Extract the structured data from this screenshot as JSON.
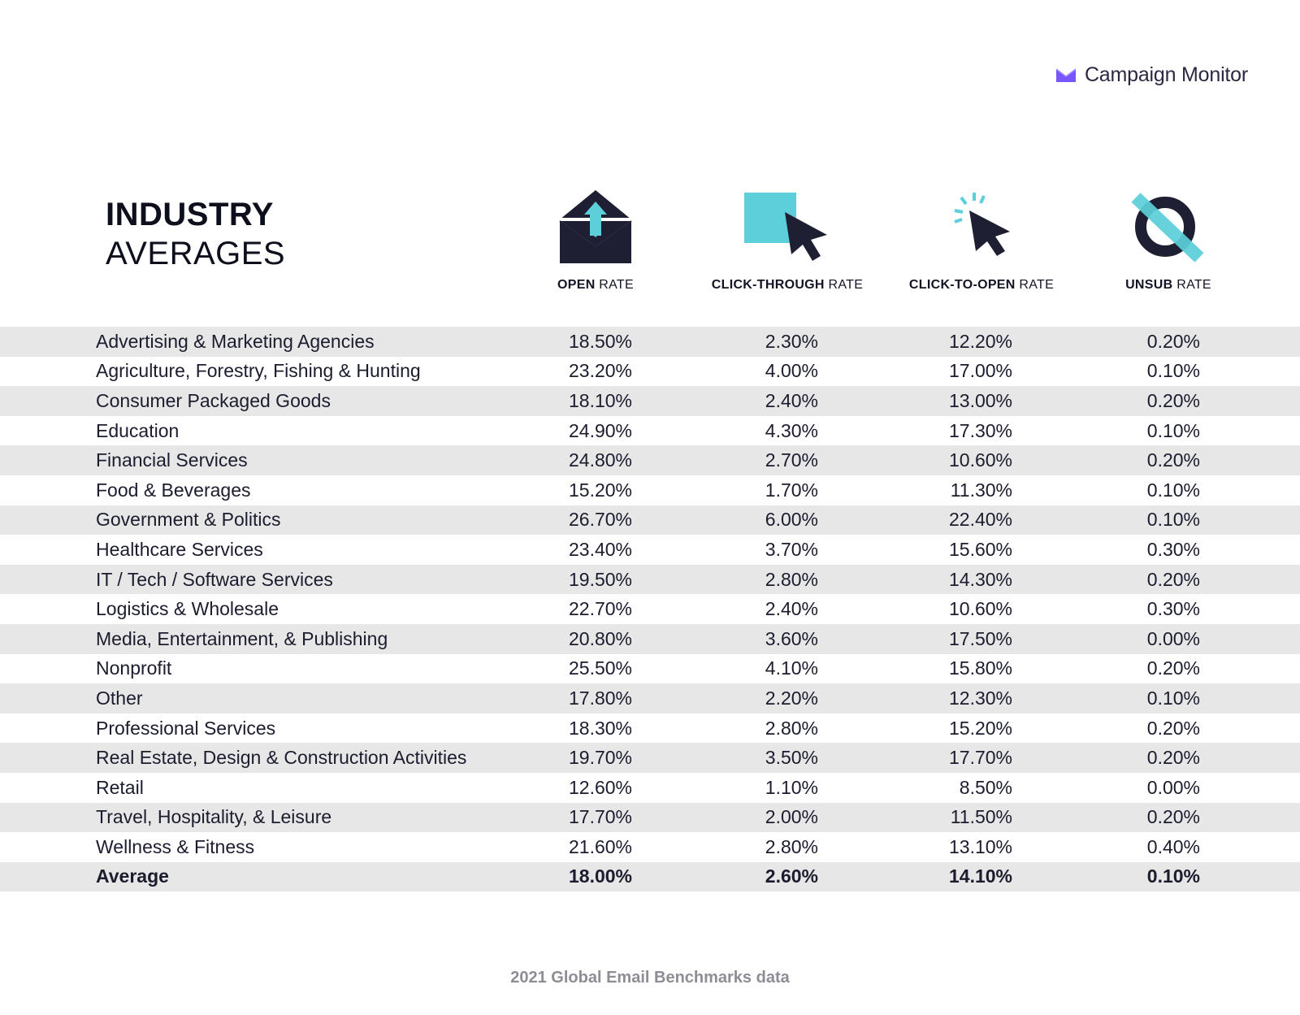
{
  "brand": {
    "name": "Campaign Monitor",
    "icon": "envelope-logo-icon",
    "color": "#7856ff"
  },
  "title": {
    "line1": "INDUSTRY",
    "line2": "AVERAGES"
  },
  "columns": [
    {
      "bold": "OPEN",
      "light": " RATE",
      "icon": "envelope-icon"
    },
    {
      "bold": "CLICK-THROUGH",
      "light": " RATE",
      "icon": "square-cursor-icon"
    },
    {
      "bold": "CLICK-TO-OPEN",
      "light": " RATE",
      "icon": "clicking-cursor-icon"
    },
    {
      "bold": "UNSUB",
      "light": " RATE",
      "icon": "unsubscribe-icon"
    }
  ],
  "colors": {
    "accent": "#5ccfda",
    "dark": "#1e1f33",
    "row_shade": "#e7e7e8",
    "footer": "#8d8d95"
  },
  "chart_data": {
    "type": "table",
    "columns": [
      "OPEN RATE",
      "CLICK-THROUGH RATE",
      "CLICK-TO-OPEN RATE",
      "UNSUB RATE"
    ],
    "rows": [
      {
        "industry": "Advertising & Marketing Agencies",
        "values": [
          "18.50%",
          "2.30%",
          "12.20%",
          "0.20%"
        ]
      },
      {
        "industry": "Agriculture, Forestry, Fishing & Hunting",
        "values": [
          "23.20%",
          "4.00%",
          "17.00%",
          "0.10%"
        ]
      },
      {
        "industry": "Consumer Packaged Goods",
        "values": [
          "18.10%",
          "2.40%",
          "13.00%",
          "0.20%"
        ]
      },
      {
        "industry": "Education",
        "values": [
          "24.90%",
          "4.30%",
          "17.30%",
          "0.10%"
        ]
      },
      {
        "industry": "Financial Services",
        "values": [
          "24.80%",
          "2.70%",
          "10.60%",
          "0.20%"
        ]
      },
      {
        "industry": "Food & Beverages",
        "values": [
          "15.20%",
          "1.70%",
          "11.30%",
          "0.10%"
        ]
      },
      {
        "industry": "Government & Politics",
        "values": [
          "26.70%",
          "6.00%",
          "22.40%",
          "0.10%"
        ]
      },
      {
        "industry": "Healthcare Services",
        "values": [
          "23.40%",
          "3.70%",
          "15.60%",
          "0.30%"
        ]
      },
      {
        "industry": "IT / Tech / Software Services",
        "values": [
          "19.50%",
          "2.80%",
          "14.30%",
          "0.20%"
        ]
      },
      {
        "industry": "Logistics & Wholesale",
        "values": [
          "22.70%",
          "2.40%",
          "10.60%",
          "0.30%"
        ]
      },
      {
        "industry": "Media, Entertainment, & Publishing",
        "values": [
          "20.80%",
          "3.60%",
          "17.50%",
          "0.00%"
        ]
      },
      {
        "industry": "Nonprofit",
        "values": [
          "25.50%",
          "4.10%",
          "15.80%",
          "0.20%"
        ]
      },
      {
        "industry": "Other",
        "values": [
          "17.80%",
          "2.20%",
          "12.30%",
          "0.10%"
        ]
      },
      {
        "industry": "Professional Services",
        "values": [
          "18.30%",
          "2.80%",
          "15.20%",
          "0.20%"
        ]
      },
      {
        "industry": "Real Estate, Design & Construction Activities",
        "values": [
          "19.70%",
          "3.50%",
          "17.70%",
          "0.20%"
        ]
      },
      {
        "industry": "Retail",
        "values": [
          "12.60%",
          "1.10%",
          "8.50%",
          "0.00%"
        ]
      },
      {
        "industry": "Travel, Hospitality, & Leisure",
        "values": [
          "17.70%",
          "2.00%",
          "11.50%",
          "0.20%"
        ]
      },
      {
        "industry": "Wellness & Fitness",
        "values": [
          "21.60%",
          "2.80%",
          "13.10%",
          "0.40%"
        ]
      },
      {
        "industry": "Average",
        "values": [
          "18.00%",
          "2.60%",
          "14.10%",
          "0.10%"
        ],
        "bold": true
      }
    ]
  },
  "footer": "2021 Global Email Benchmarks data"
}
